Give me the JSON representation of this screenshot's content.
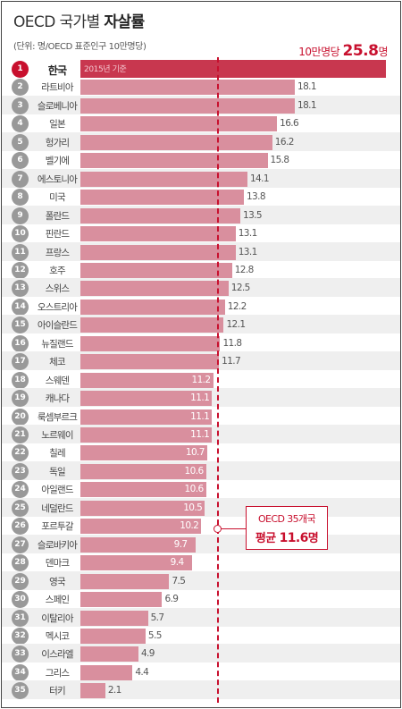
{
  "title": {
    "regular": "OECD 국가별",
    "bold": "자살률"
  },
  "unit_note": "(단위: 명/OECD 표준인구 10만명당)",
  "top_callout": {
    "prefix": "10만명당",
    "value": "25.8",
    "suffix": "명"
  },
  "first_row_note": "2015년 기준",
  "average": {
    "line1": "OECD 35개국",
    "prefix": "평균",
    "value": "11.6",
    "suffix": "명",
    "numeric": 11.6
  },
  "colors": {
    "accent": "#c8102e",
    "bar": "#d98f9e",
    "first_bar": "#c8374f",
    "badge": "#999999"
  },
  "chart_data": {
    "type": "bar",
    "orientation": "horizontal",
    "title": "OECD 국가별 자살률",
    "unit": "명/OECD 표준인구 10만명당",
    "ranks": [
      "1",
      "2",
      "3",
      "4",
      "5",
      "6",
      "7",
      "8",
      "9",
      "10",
      "11",
      "12",
      "13",
      "14",
      "15",
      "16",
      "17",
      "18",
      "19",
      "20",
      "21",
      "22",
      "23",
      "24",
      "25",
      "26",
      "27",
      "28",
      "29",
      "30",
      "31",
      "32",
      "33",
      "34",
      "35"
    ],
    "categories": [
      "한국",
      "라트비아",
      "슬로베니아",
      "일본",
      "헝가리",
      "벨기에",
      "에스토니아",
      "미국",
      "폴란드",
      "핀란드",
      "프랑스",
      "호주",
      "스위스",
      "오스트리아",
      "아이슬란드",
      "뉴질랜드",
      "체코",
      "스웨덴",
      "캐나다",
      "룩셈부르크",
      "노르웨이",
      "칠레",
      "독일",
      "아일랜드",
      "네덜란드",
      "포르투갈",
      "슬로바키아",
      "덴마크",
      "영국",
      "스페인",
      "이탈리아",
      "멕시코",
      "이스라엘",
      "그리스",
      "터키"
    ],
    "values": [
      25.8,
      18.1,
      18.1,
      16.6,
      16.2,
      15.8,
      14.1,
      13.8,
      13.5,
      13.1,
      13.1,
      12.8,
      12.5,
      12.2,
      12.1,
      11.8,
      11.7,
      11.2,
      11.1,
      11.1,
      11.1,
      10.7,
      10.6,
      10.6,
      10.5,
      10.2,
      9.7,
      9.4,
      7.5,
      6.9,
      5.7,
      5.5,
      4.9,
      4.4,
      2.1
    ],
    "value_labels": [
      "",
      "18.1",
      "18.1",
      "16.6",
      "16.2",
      "15.8",
      "14.1",
      "13.8",
      "13.5",
      "13.1",
      "13.1",
      "12.8",
      "12.5",
      "12.2",
      "12.1",
      "11.8",
      "11.7",
      "11.2",
      "11.1",
      "11.1",
      "11.1",
      "10.7",
      "10.6",
      "10.6",
      "10.5",
      "10.2",
      "9.7",
      "9.4",
      "7.5",
      "6.9",
      "5.7",
      "5.5",
      "4.9",
      "4.4",
      "2.1"
    ],
    "reference_line": 11.6,
    "legend": "none",
    "grid": false
  }
}
